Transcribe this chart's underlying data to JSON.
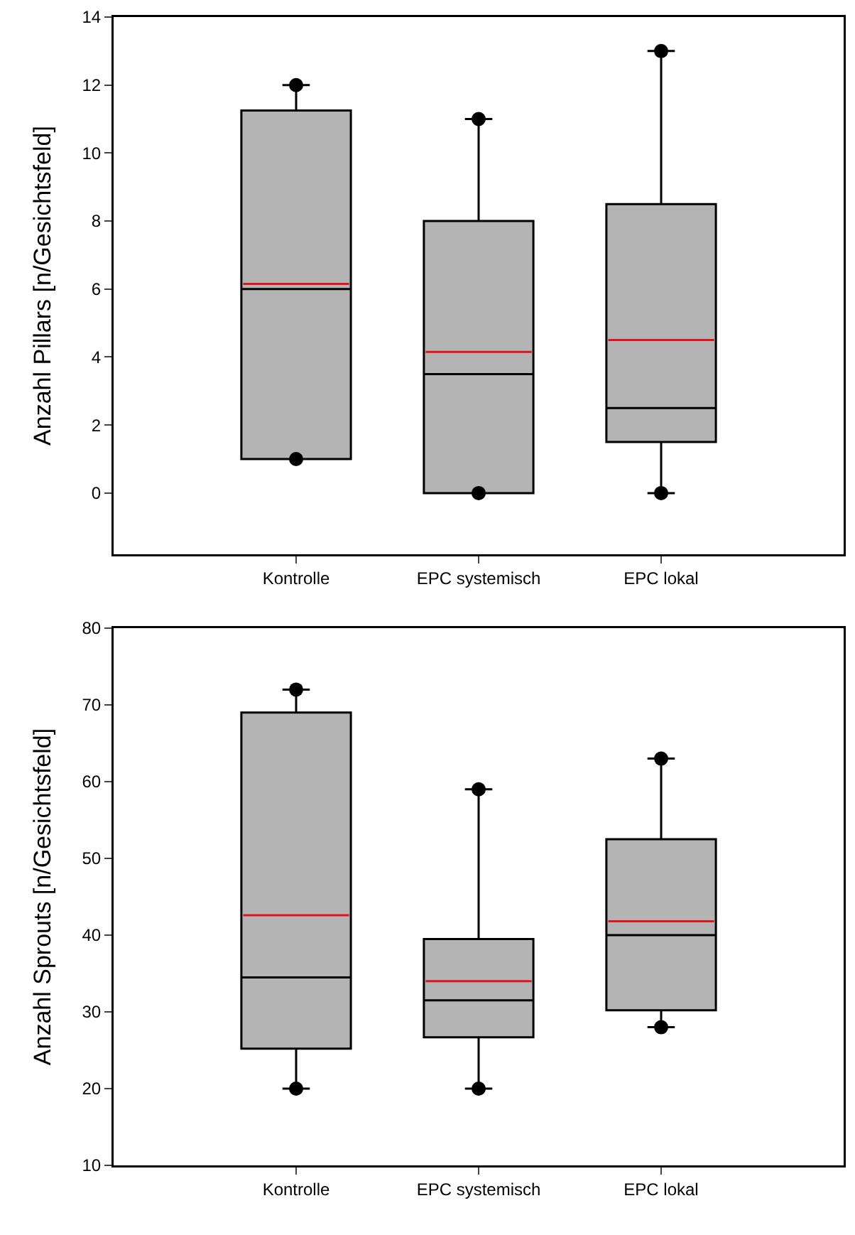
{
  "chart_data": [
    {
      "type": "box",
      "ylabel": "Anzahl Pillars [n/Gesichtsfeld]",
      "categories": [
        "Kontrolle",
        "EPC systemisch",
        "EPC lokal"
      ],
      "ylim": [
        -1.8,
        14
      ],
      "yticks": [
        0,
        2,
        4,
        6,
        8,
        10,
        12,
        14
      ],
      "grid": false,
      "boxes": [
        {
          "low": 1,
          "q1": 1,
          "median": 6,
          "q3": 11.25,
          "high": 12,
          "mean": 6.15,
          "outliers": [
            1,
            12
          ]
        },
        {
          "low": 0,
          "q1": 0,
          "median": 3.5,
          "q3": 8,
          "high": 11,
          "mean": 4.15,
          "outliers": [
            0,
            11
          ]
        },
        {
          "low": 0,
          "q1": 1.5,
          "median": 2.5,
          "q3": 8.5,
          "high": 13,
          "mean": 4.5,
          "outliers": [
            0,
            13
          ]
        }
      ]
    },
    {
      "type": "box",
      "ylabel": "Anzahl Sprouts [n/Gesichtsfeld]",
      "categories": [
        "Kontrolle",
        "EPC systemisch",
        "EPC lokal"
      ],
      "ylim": [
        10,
        80
      ],
      "yticks": [
        10,
        20,
        30,
        40,
        50,
        60,
        70,
        80
      ],
      "grid": false,
      "boxes": [
        {
          "low": 20,
          "q1": 25.2,
          "median": 34.5,
          "q3": 69,
          "high": 72,
          "mean": 42.6,
          "outliers": [
            20,
            72
          ]
        },
        {
          "low": 20,
          "q1": 26.7,
          "median": 31.5,
          "q3": 39.5,
          "high": 59,
          "mean": 34,
          "outliers": [
            20,
            59
          ]
        },
        {
          "low": 28,
          "q1": 30.2,
          "median": 40,
          "q3": 52.5,
          "high": 63,
          "mean": 41.8,
          "outliers": [
            28,
            63
          ]
        }
      ]
    }
  ]
}
